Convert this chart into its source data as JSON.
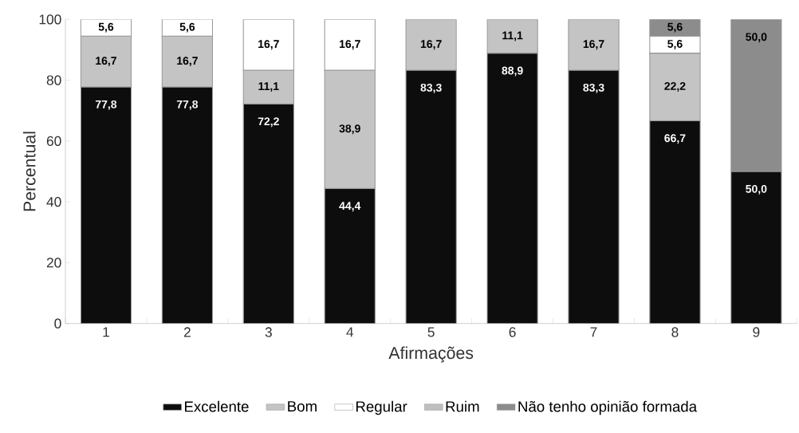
{
  "chart_data": {
    "type": "bar",
    "stacked": true,
    "xlabel": "Afirmações",
    "ylabel": "Percentual",
    "categories": [
      "1",
      "2",
      "3",
      "4",
      "5",
      "6",
      "7",
      "8",
      "9"
    ],
    "ylim": [
      0,
      100
    ],
    "yticks": [
      0,
      20,
      40,
      60,
      80,
      100
    ],
    "grid": false,
    "legend": "bottom",
    "series": [
      {
        "name": "Excelente",
        "color": "#0d0d0d",
        "values": [
          77.8,
          77.8,
          72.2,
          44.4,
          83.3,
          88.9,
          83.3,
          66.7,
          50.0
        ],
        "value_labels": [
          "77,8",
          "77,8",
          "72,2",
          "44,4",
          "83,3",
          "88,9",
          "83,3",
          "66,7",
          "50,0"
        ]
      },
      {
        "name": "Bom",
        "color": "#c4c4c4",
        "values": [
          16.7,
          16.7,
          11.1,
          38.9,
          16.7,
          11.1,
          16.7,
          22.2,
          null
        ],
        "value_labels": [
          "16,7",
          "16,7",
          "11,1",
          "38,9",
          "16,7",
          "11,1",
          "16,7",
          "22,2",
          null
        ]
      },
      {
        "name": "Regular",
        "color": "#ffffff",
        "values": [
          5.6,
          5.6,
          16.7,
          16.7,
          null,
          null,
          null,
          5.6,
          null
        ],
        "value_labels": [
          "5,6",
          "5,6",
          "16,7",
          "16,7",
          null,
          null,
          null,
          "5,6",
          null
        ]
      },
      {
        "name": "Ruim",
        "color": "#bfbfbf",
        "values": [
          null,
          null,
          null,
          null,
          null,
          null,
          null,
          null,
          null
        ],
        "value_labels": [
          null,
          null,
          null,
          null,
          null,
          null,
          null,
          null,
          null
        ]
      },
      {
        "name": "Não tenho opinião formada",
        "color": "#8c8c8c",
        "values": [
          null,
          null,
          null,
          null,
          null,
          null,
          null,
          5.6,
          50.0
        ],
        "value_labels": [
          null,
          null,
          null,
          null,
          null,
          null,
          null,
          "5,6",
          "50,0"
        ]
      }
    ]
  }
}
